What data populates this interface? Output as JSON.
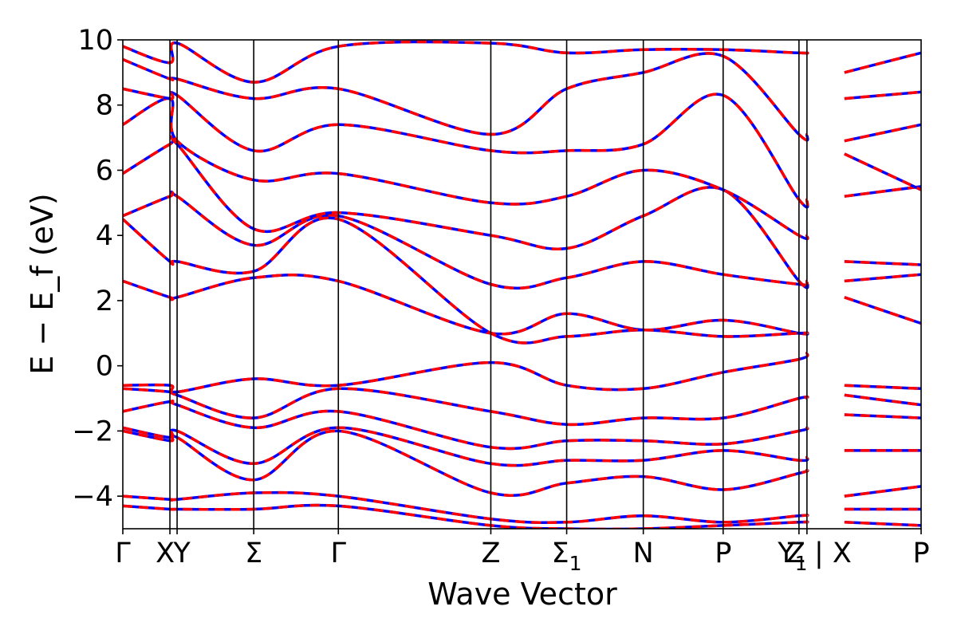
{
  "chart_data": {
    "type": "line",
    "xlabel": "Wave Vector",
    "ylabel": "E − E_f (eV)",
    "ylim": [
      -5,
      10
    ],
    "yticks": [
      -4,
      -2,
      0,
      2,
      4,
      6,
      8,
      10
    ],
    "ytick_labels": [
      "−4",
      "−2",
      "0",
      "2",
      "4",
      "6",
      "8",
      "10"
    ],
    "xlim": [
      0,
      1
    ],
    "high_symmetry_points": [
      {
        "x": 0.0,
        "label": "Γ"
      },
      {
        "x": 0.059,
        "label": "X"
      },
      {
        "x": 0.068,
        "label": "Y"
      },
      {
        "x": 0.164,
        "label": "Σ"
      },
      {
        "x": 0.27,
        "label": "Γ"
      },
      {
        "x": 0.461,
        "label": "Z"
      },
      {
        "x": 0.556,
        "label": "Σ1"
      },
      {
        "x": 0.652,
        "label": "N"
      },
      {
        "x": 0.752,
        "label": "P"
      },
      {
        "x": 0.847,
        "label": "Y1"
      },
      {
        "x": 0.857,
        "label": "Z | X"
      },
      {
        "x": 1.0,
        "label": "P"
      }
    ],
    "path_breaks": [
      0.904
    ],
    "series_style": [
      {
        "color": "#0000ff",
        "dash": "none",
        "width": 3.5
      },
      {
        "color": "#ff0000",
        "dash": "12,8",
        "width": 3.5
      }
    ],
    "bands": [
      {
        "x": [
          0,
          0.059,
          0.068,
          0.164,
          0.27,
          0.461,
          0.556,
          0.652,
          0.752,
          0.847,
          0.857,
          0.904,
          1.0
        ],
        "y": [
          -4.3,
          -4.4,
          -4.4,
          -4.4,
          -4.3,
          -4.9,
          -5.0,
          -5.0,
          -4.9,
          -4.8,
          -4.8,
          -4.8,
          -4.9
        ]
      },
      {
        "x": [
          0,
          0.059,
          0.068,
          0.164,
          0.27,
          0.461,
          0.556,
          0.652,
          0.752,
          0.847,
          0.857,
          0.904,
          1.0
        ],
        "y": [
          -4.0,
          -4.1,
          -4.1,
          -3.9,
          -4.0,
          -4.7,
          -4.8,
          -4.6,
          -4.8,
          -4.6,
          -4.6,
          -4.4,
          -4.4
        ]
      },
      {
        "x": [
          0,
          0.059,
          0.068,
          0.164,
          0.27,
          0.461,
          0.556,
          0.652,
          0.752,
          0.847,
          0.857,
          0.904,
          1.0
        ],
        "y": [
          -2.0,
          -2.3,
          -2.2,
          -3.5,
          -2.0,
          -3.9,
          -3.6,
          -3.4,
          -3.8,
          -3.3,
          -3.2,
          -4.0,
          -3.7
        ]
      },
      {
        "x": [
          0,
          0.059,
          0.068,
          0.164,
          0.27,
          0.461,
          0.556,
          0.652,
          0.752,
          0.847,
          0.857,
          0.904,
          1.0
        ],
        "y": [
          -1.9,
          -2.2,
          -2.0,
          -3.0,
          -1.9,
          -3.0,
          -2.9,
          -2.9,
          -2.6,
          -2.9,
          -2.8,
          -2.6,
          -2.6
        ]
      },
      {
        "x": [
          0,
          0.059,
          0.068,
          0.164,
          0.27,
          0.461,
          0.556,
          0.652,
          0.752,
          0.847,
          0.857,
          0.904,
          1.0
        ],
        "y": [
          -1.4,
          -1.1,
          -1.2,
          -1.9,
          -1.4,
          -2.5,
          -2.3,
          -2.3,
          -2.4,
          -2.0,
          -1.9,
          -1.5,
          -1.6
        ]
      },
      {
        "x": [
          0,
          0.059,
          0.068,
          0.164,
          0.27,
          0.461,
          0.556,
          0.652,
          0.752,
          0.847,
          0.857,
          0.904,
          1.0
        ],
        "y": [
          -0.7,
          -0.8,
          -0.9,
          -1.6,
          -0.7,
          -1.4,
          -1.8,
          -1.6,
          -1.6,
          -1.0,
          -1.0,
          -0.9,
          -1.2
        ]
      },
      {
        "x": [
          0,
          0.059,
          0.068,
          0.164,
          0.27,
          0.461,
          0.556,
          0.652,
          0.752,
          0.847,
          0.857,
          0.904,
          1.0
        ],
        "y": [
          -0.6,
          -0.6,
          -0.8,
          -0.4,
          -0.6,
          0.1,
          -0.6,
          -0.7,
          -0.2,
          0.2,
          0.4,
          -0.6,
          -0.7
        ]
      },
      {
        "x": [
          0,
          0.059,
          0.068,
          0.164,
          0.27,
          0.461,
          0.556,
          0.652,
          0.752,
          0.847,
          0.857,
          0.904,
          1.0
        ],
        "y": [
          2.6,
          2.1,
          2.1,
          2.7,
          2.6,
          1.0,
          1.6,
          1.1,
          1.4,
          1.0,
          1.0,
          2.1,
          1.3
        ]
      },
      {
        "x": [
          0,
          0.059,
          0.068,
          0.164,
          0.27,
          0.461,
          0.556,
          0.652,
          0.752,
          0.847,
          0.857,
          0.904,
          1.0
        ],
        "y": [
          4.5,
          3.2,
          3.2,
          2.9,
          4.5,
          1.0,
          0.9,
          1.1,
          0.9,
          1.0,
          1.0,
          2.6,
          2.8
        ]
      },
      {
        "x": [
          0,
          0.059,
          0.068,
          0.164,
          0.27,
          0.461,
          0.556,
          0.652,
          0.752,
          0.847,
          0.857,
          0.904,
          1.0
        ],
        "y": [
          4.6,
          5.2,
          5.2,
          3.7,
          4.6,
          2.5,
          2.7,
          3.2,
          2.8,
          2.5,
          2.5,
          3.2,
          3.1
        ]
      },
      {
        "x": [
          0,
          0.059,
          0.068,
          0.164,
          0.27,
          0.461,
          0.556,
          0.652,
          0.752,
          0.847,
          0.857,
          0.904,
          1.0
        ],
        "y": [
          5.9,
          6.8,
          6.8,
          4.2,
          4.7,
          4.0,
          3.6,
          4.6,
          5.4,
          2.6,
          2.6,
          5.2,
          5.5
        ]
      },
      {
        "x": [
          0,
          0.059,
          0.068,
          0.164,
          0.27,
          0.461,
          0.556,
          0.652,
          0.752,
          0.847,
          0.857,
          0.904,
          1.0
        ],
        "y": [
          7.4,
          8.2,
          6.9,
          5.7,
          5.9,
          5.0,
          5.2,
          6.0,
          5.4,
          4.0,
          4.0,
          6.5,
          5.4
        ]
      },
      {
        "x": [
          0,
          0.059,
          0.068,
          0.164,
          0.27,
          0.461,
          0.556,
          0.652,
          0.752,
          0.847,
          0.857,
          0.904,
          1.0
        ],
        "y": [
          8.5,
          8.2,
          8.3,
          6.6,
          7.4,
          6.6,
          6.6,
          6.8,
          8.3,
          5.1,
          5.1,
          6.9,
          7.4
        ]
      },
      {
        "x": [
          0,
          0.059,
          0.068,
          0.164,
          0.27,
          0.461,
          0.556,
          0.652,
          0.752,
          0.847,
          0.857,
          0.904,
          1.0
        ],
        "y": [
          9.4,
          8.8,
          8.8,
          8.2,
          8.5,
          7.1,
          8.5,
          9.0,
          9.5,
          7.1,
          7.1,
          8.2,
          8.4
        ]
      },
      {
        "x": [
          0,
          0.059,
          0.068,
          0.164,
          0.27,
          0.461,
          0.556,
          0.652,
          0.752,
          0.847,
          0.857,
          0.904,
          1.0
        ],
        "y": [
          9.8,
          9.3,
          9.9,
          8.7,
          9.8,
          9.9,
          9.6,
          9.7,
          9.7,
          9.6,
          9.6,
          9.0,
          9.6
        ]
      }
    ]
  }
}
